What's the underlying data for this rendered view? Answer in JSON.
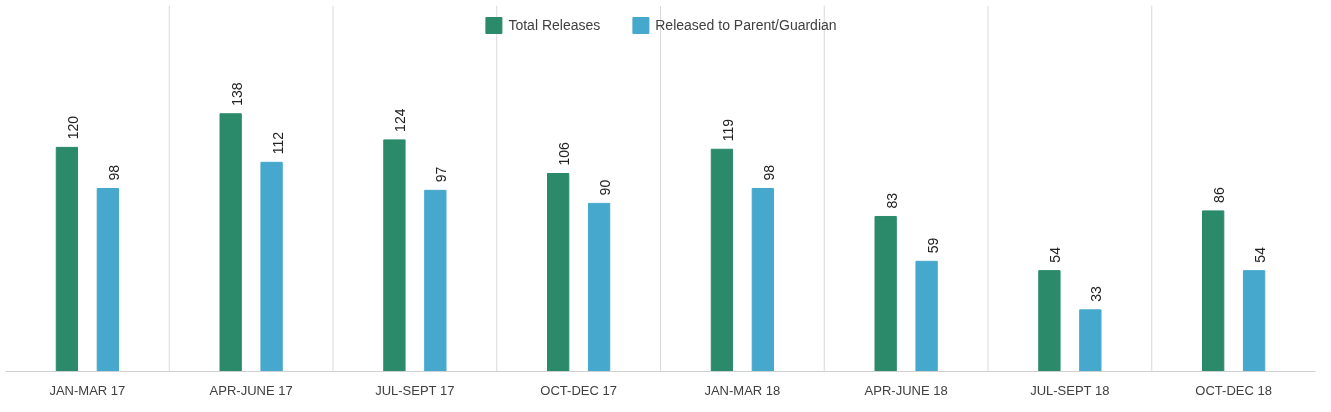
{
  "chart_data": {
    "type": "bar",
    "categories": [
      "JAN-MAR 17",
      "APR-JUNE 17",
      "JUL-SEPT 17",
      "OCT-DEC 17",
      "JAN-MAR 18",
      "APR-JUNE 18",
      "JUL-SEPT 18",
      "OCT-DEC 18"
    ],
    "series": [
      {
        "name": "Total Releases",
        "color": "#2a8a6a",
        "values": [
          120,
          138,
          124,
          106,
          119,
          83,
          54,
          86
        ]
      },
      {
        "name": "Released to Parent/Guardian",
        "color": "#45a8cc",
        "values": [
          98,
          112,
          97,
          90,
          98,
          59,
          33,
          54
        ]
      }
    ],
    "data_labels": true,
    "grid": "x",
    "legend": "top"
  }
}
